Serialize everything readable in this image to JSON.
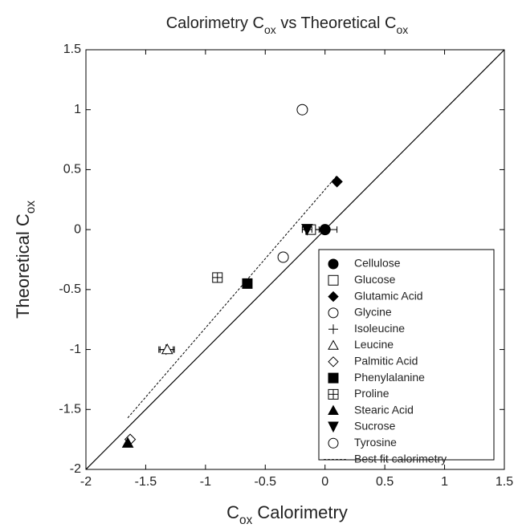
{
  "chart_data": {
    "type": "scatter",
    "title": [
      "Calorimetry C",
      "ox",
      " vs Theoretical C",
      "ox"
    ],
    "xlabel": [
      "C",
      "ox",
      " Calorimetry"
    ],
    "ylabel": [
      "Theoretical C",
      "ox"
    ],
    "xlim": [
      -2,
      1.5
    ],
    "ylim": [
      -2,
      1.5
    ],
    "xticks": [
      -2,
      -1.5,
      -1,
      -0.5,
      0,
      0.5,
      1,
      1.5
    ],
    "yticks": [
      -2,
      -1.5,
      -1,
      -0.5,
      0,
      0.5,
      1,
      1.5
    ],
    "color": "#000000",
    "legend": "lower-right",
    "identity_line": {
      "x": [
        -2,
        1.5
      ],
      "values": [
        -2,
        1.5
      ]
    },
    "series": [
      {
        "name": "Cellulose",
        "marker": "filled-circle",
        "x": [
          0
        ],
        "values": [
          0
        ],
        "xerr": [
          0.1
        ]
      },
      {
        "name": "Glucose",
        "marker": "open-square",
        "x": [
          -0.12
        ],
        "values": [
          0
        ],
        "xerr": [
          0.07
        ]
      },
      {
        "name": "Glutamic Acid",
        "marker": "filled-diamond",
        "x": [
          0.1
        ],
        "values": [
          0.4
        ],
        "xerr": [
          0.02
        ]
      },
      {
        "name": "Glycine",
        "marker": "open-circle",
        "x": [
          -0.35
        ],
        "values": [
          -0.23
        ],
        "xerr": [
          0
        ]
      },
      {
        "name": "Isoleucine",
        "marker": "plus",
        "x": [
          -1.33
        ],
        "values": [
          -1
        ],
        "xerr": [
          0.06
        ]
      },
      {
        "name": "Leucine",
        "marker": "open-triangle",
        "x": [
          -1.32
        ],
        "values": [
          -1
        ],
        "xerr": [
          0.06
        ]
      },
      {
        "name": "Palmitic Acid",
        "marker": "open-diamond",
        "x": [
          -1.63
        ],
        "values": [
          -1.75
        ],
        "xerr": [
          0
        ]
      },
      {
        "name": "Phenylalanine",
        "marker": "filled-square",
        "x": [
          -0.65
        ],
        "values": [
          -0.45
        ],
        "xerr": [
          0
        ]
      },
      {
        "name": "Proline",
        "marker": "square-plus",
        "x": [
          -0.9
        ],
        "values": [
          -0.4
        ],
        "xerr": [
          0
        ]
      },
      {
        "name": "Stearic Acid",
        "marker": "filled-triangle",
        "x": [
          -1.65
        ],
        "values": [
          -1.78
        ],
        "xerr": [
          0
        ]
      },
      {
        "name": "Sucrose",
        "marker": "filled-down-triangle",
        "x": [
          -0.15
        ],
        "values": [
          0
        ],
        "xerr": [
          0.04
        ]
      },
      {
        "name": "Tyrosine",
        "marker": "open-circle",
        "x": [
          -0.19
        ],
        "values": [
          1
        ],
        "xerr": [
          0.03
        ]
      }
    ],
    "fit_line": {
      "name": "Best fit calorimetry",
      "x": [
        -1.65,
        0.1
      ],
      "values": [
        -1.57,
        0.45
      ]
    }
  }
}
